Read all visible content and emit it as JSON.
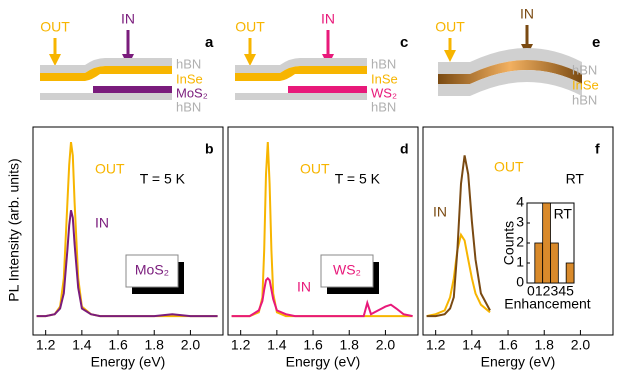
{
  "schematics": [
    {
      "letter": "a",
      "out": "OUT",
      "in": "IN",
      "layers": [
        "hBN",
        "InSe",
        "MoS₂",
        "hBN"
      ]
    },
    {
      "letter": "c",
      "out": "OUT",
      "in": "IN",
      "layers": [
        "hBN",
        "InSe",
        "WS₂",
        "hBN"
      ]
    },
    {
      "letter": "e",
      "out": "OUT",
      "in": "IN",
      "layers": [
        "hBN",
        "InSe",
        "hBN"
      ]
    }
  ],
  "chart_data": [
    {
      "type": "line",
      "panel_label": "b",
      "ylabel": "PL Intensity (arb. units)",
      "xlabel": "Energy (eV)",
      "annotations": [
        "T = 5 K",
        "MoS₂"
      ],
      "xlim": [
        1.13,
        2.18
      ],
      "xticks": [
        1.2,
        1.4,
        1.6,
        1.8,
        {
          "value": 2.0,
          "label": "2.0"
        }
      ],
      "ylim": [
        0,
        1.1
      ],
      "x": [
        1.15,
        1.2,
        1.25,
        1.28,
        1.3,
        1.32,
        1.33,
        1.34,
        1.35,
        1.36,
        1.38,
        1.4,
        1.45,
        1.5,
        1.6,
        1.7,
        1.8,
        1.9,
        2.0,
        2.1,
        2.15
      ],
      "series": [
        {
          "name": "OUT",
          "color": "#f7b500",
          "values": [
            0.1,
            0.1,
            0.11,
            0.15,
            0.3,
            0.7,
            0.9,
            1.02,
            0.95,
            0.7,
            0.3,
            0.15,
            0.11,
            0.1,
            0.1,
            0.1,
            0.1,
            0.1,
            0.1,
            0.1,
            0.1
          ]
        },
        {
          "name": "IN",
          "color": "#7a1c7c",
          "values": [
            0.1,
            0.1,
            0.11,
            0.14,
            0.22,
            0.45,
            0.58,
            0.66,
            0.62,
            0.48,
            0.25,
            0.14,
            0.11,
            0.1,
            0.1,
            0.1,
            0.1,
            0.11,
            0.1,
            0.1,
            0.1
          ]
        }
      ]
    },
    {
      "type": "line",
      "panel_label": "d",
      "xlabel": "Energy (eV)",
      "annotations": [
        "T = 5 K",
        "WS₂"
      ],
      "xlim": [
        1.13,
        2.18
      ],
      "xticks": [
        1.2,
        1.4,
        1.6,
        1.8,
        {
          "value": 2.0,
          "label": "2.0"
        }
      ],
      "ylim": [
        0,
        1.1
      ],
      "x": [
        1.15,
        1.2,
        1.25,
        1.3,
        1.32,
        1.33,
        1.34,
        1.35,
        1.36,
        1.37,
        1.38,
        1.4,
        1.45,
        1.5,
        1.6,
        1.7,
        1.8,
        1.88,
        1.9,
        1.92,
        1.94,
        1.98,
        2.0,
        2.03,
        2.06,
        2.1,
        2.15
      ],
      "series": [
        {
          "name": "OUT",
          "color": "#f7b500",
          "values": [
            0.1,
            0.1,
            0.1,
            0.12,
            0.2,
            0.45,
            0.85,
            1.02,
            0.8,
            0.45,
            0.22,
            0.12,
            0.1,
            0.1,
            0.1,
            0.1,
            0.1,
            0.1,
            0.1,
            0.1,
            0.1,
            0.1,
            0.1,
            0.1,
            0.1,
            0.1,
            0.1
          ]
        },
        {
          "name": "IN",
          "color": "#e8197a",
          "values": [
            0.1,
            0.1,
            0.1,
            0.13,
            0.18,
            0.24,
            0.29,
            0.3,
            0.29,
            0.24,
            0.19,
            0.13,
            0.11,
            0.1,
            0.1,
            0.1,
            0.1,
            0.1,
            0.17,
            0.11,
            0.12,
            0.14,
            0.15,
            0.16,
            0.14,
            0.11,
            0.1
          ]
        }
      ]
    },
    {
      "type": "line",
      "panel_label": "f",
      "xlabel": "Energy (eV)",
      "annotations": [
        "RT"
      ],
      "xlim": [
        1.13,
        2.18
      ],
      "xticks": [
        1.2,
        1.4,
        1.6,
        1.8,
        {
          "value": 2.0,
          "label": "2.0"
        }
      ],
      "ylim": [
        0,
        1.1
      ],
      "x": [
        1.15,
        1.2,
        1.25,
        1.28,
        1.3,
        1.32,
        1.34,
        1.36,
        1.38,
        1.4,
        1.42,
        1.45,
        1.5
      ],
      "series": [
        {
          "name": "OUT",
          "color": "#f7b500",
          "values": [
            0.1,
            0.11,
            0.13,
            0.2,
            0.3,
            0.45,
            0.53,
            0.5,
            0.4,
            0.3,
            0.22,
            0.16,
            0.12
          ]
        },
        {
          "name": "IN",
          "color": "#7a4a12",
          "values": [
            0.1,
            0.1,
            0.11,
            0.14,
            0.2,
            0.45,
            0.8,
            0.95,
            0.85,
            0.6,
            0.4,
            0.22,
            0.13
          ]
        }
      ]
    },
    {
      "type": "bar",
      "xlabel": "Enhancement",
      "ylabel": "Counts",
      "annotations": [
        "RT"
      ],
      "categories": [
        "0",
        "1",
        "2",
        "3",
        "4",
        "5"
      ],
      "values": [
        0,
        2,
        4,
        2,
        0,
        1
      ],
      "color": "#d98a2b",
      "ylim": [
        0,
        4
      ],
      "yticks": [
        0,
        1,
        2,
        3,
        4
      ]
    }
  ]
}
